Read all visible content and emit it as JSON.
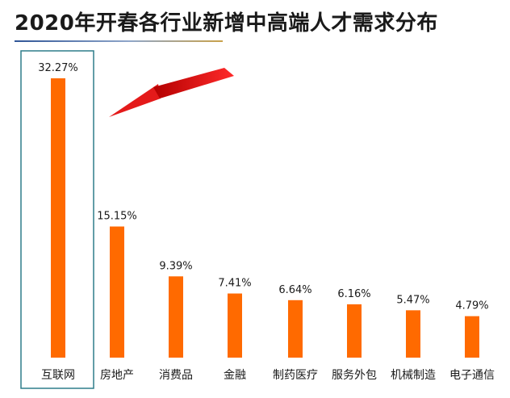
{
  "header": {
    "title": "2020年开春各行业新增中高端人才需求分布"
  },
  "chart_data": {
    "type": "bar",
    "title": "2020年开春各行业新增中高端人才需求分布",
    "categories": [
      "互联网",
      "房地产",
      "消费品",
      "金融",
      "制药医疗",
      "服务外包",
      "机械制造",
      "电子通信"
    ],
    "values": [
      32.27,
      15.15,
      9.39,
      7.41,
      6.64,
      6.16,
      5.47,
      4.79
    ],
    "value_labels": [
      "32.27%",
      "15.15%",
      "9.39%",
      "7.41%",
      "6.64%",
      "6.16%",
      "5.47%",
      "4.79%"
    ],
    "unit": "%",
    "ylim": [
      0,
      33
    ],
    "grid": false,
    "legend": "none",
    "highlighted_category": "互联网",
    "annotation": "red-arrow-pointing-to-top-bar"
  },
  "colors": {
    "bar": "#ff6a00",
    "highlight_box": "#2e7d8a",
    "arrow": "#e41a1a",
    "text": "#1a1a1a"
  }
}
